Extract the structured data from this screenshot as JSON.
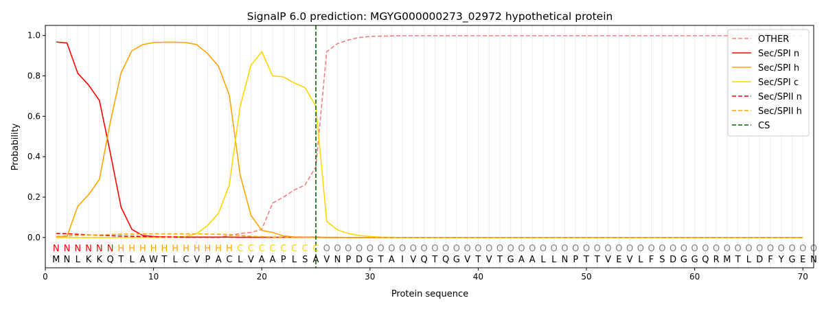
{
  "chart_data": {
    "type": "line",
    "title": "SignalP 6.0 prediction: MGYG000000273_02972 hypothetical protein",
    "xlabel": "Protein sequence",
    "ylabel": "Probability",
    "xlim": [
      0,
      71
    ],
    "ylim": [
      -0.15,
      1.05
    ],
    "xticks": [
      0,
      10,
      20,
      30,
      40,
      50,
      60,
      70
    ],
    "yticks": [
      0.0,
      0.2,
      0.4,
      0.6,
      0.8,
      1.0
    ],
    "x_tick_labels": [
      "0",
      "10",
      "20",
      "30",
      "40",
      "50",
      "60",
      "70"
    ],
    "y_tick_labels": [
      "0.0",
      "0.2",
      "0.4",
      "0.6",
      "0.8",
      "1.0"
    ],
    "grid": "vertical lines at each residue",
    "legend_position": "top-right",
    "sequence": "MNLKKQTLAWTLCVPACLVAAPLSAVNPDGTAIVQTQGVTVTGAALLNPTTVEVLFSDGGQRMTLDFYGEN",
    "labels": "NNNNNNHHHHHHHHHHHCCCCCCCCOOOOOOOOOOOOOOOOOOOOOOOOOOOOOOOOOOOOOOOOOOOOOO",
    "label_colors": {
      "N": "#ff0000",
      "H": "#ffa500",
      "C": "#ffd700",
      "O": "#808080"
    },
    "cleavage_site": 25,
    "series": [
      {
        "name": "OTHER",
        "color": "#f08080",
        "style": "dashed",
        "values": [
          0.0,
          0.0,
          0.0,
          0.0,
          0.0,
          0.0,
          0.0,
          0.0,
          0.0,
          0.0,
          0.0,
          0.0,
          0.0,
          0.0,
          0.0,
          0.0,
          0.01,
          0.02,
          0.025,
          0.04,
          0.17,
          0.2,
          0.235,
          0.26,
          0.35,
          0.92,
          0.96,
          0.978,
          0.99,
          0.995,
          0.997,
          0.998,
          0.999,
          0.999,
          0.999,
          0.999,
          0.999,
          0.999,
          0.999,
          0.999,
          0.999,
          0.999,
          0.999,
          0.999,
          0.999,
          0.999,
          0.999,
          0.999,
          0.999,
          0.999,
          0.999,
          0.999,
          0.999,
          0.999,
          0.999,
          0.999,
          0.999,
          0.999,
          0.999,
          0.999,
          0.999,
          0.999,
          0.999,
          0.999,
          0.999,
          0.999,
          0.999,
          0.999,
          0.999,
          0.999
        ]
      },
      {
        "name": "Sec/SPI n",
        "color": "#ff0000",
        "style": "solid",
        "values": [
          0.968,
          0.963,
          0.813,
          0.755,
          0.678,
          0.42,
          0.15,
          0.04,
          0.01,
          0.005,
          0.003,
          0.002,
          0.002,
          0.002,
          0.002,
          0.002,
          0.002,
          0.001,
          0.001,
          0.001,
          0.001,
          0.001,
          0.001,
          0.001,
          0.001,
          0.0,
          0.0,
          0.0,
          0.0,
          0.0,
          0.0,
          0.0,
          0.0,
          0.0,
          0.0,
          0.0,
          0.0,
          0.0,
          0.0,
          0.0,
          0.0,
          0.0,
          0.0,
          0.0,
          0.0,
          0.0,
          0.0,
          0.0,
          0.0,
          0.0,
          0.0,
          0.0,
          0.0,
          0.0,
          0.0,
          0.0,
          0.0,
          0.0,
          0.0,
          0.0,
          0.0,
          0.0,
          0.0,
          0.0,
          0.0,
          0.0,
          0.0,
          0.0,
          0.0,
          0.0
        ]
      },
      {
        "name": "Sec/SPI h",
        "color": "#ffa500",
        "style": "solid",
        "values": [
          0.005,
          0.005,
          0.155,
          0.212,
          0.288,
          0.57,
          0.815,
          0.925,
          0.955,
          0.965,
          0.967,
          0.967,
          0.965,
          0.955,
          0.91,
          0.848,
          0.705,
          0.31,
          0.11,
          0.035,
          0.025,
          0.008,
          0.003,
          0.002,
          0.002,
          0.001,
          0.001,
          0.0,
          0.0,
          0.0,
          0.0,
          0.0,
          0.0,
          0.0,
          0.0,
          0.0,
          0.0,
          0.0,
          0.0,
          0.0,
          0.0,
          0.0,
          0.0,
          0.0,
          0.0,
          0.0,
          0.0,
          0.0,
          0.0,
          0.0,
          0.0,
          0.0,
          0.0,
          0.0,
          0.0,
          0.0,
          0.0,
          0.0,
          0.0,
          0.0,
          0.0,
          0.0,
          0.0,
          0.0,
          0.0,
          0.0,
          0.0,
          0.0,
          0.0,
          0.0
        ]
      },
      {
        "name": "Sec/SPI c",
        "color": "#ffd700",
        "style": "solid",
        "values": [
          0.0,
          0.0,
          0.0,
          0.0,
          0.0,
          0.0,
          0.0,
          0.0,
          0.0,
          0.001,
          0.002,
          0.003,
          0.005,
          0.02,
          0.06,
          0.12,
          0.26,
          0.65,
          0.852,
          0.92,
          0.8,
          0.795,
          0.765,
          0.742,
          0.65,
          0.08,
          0.038,
          0.02,
          0.01,
          0.005,
          0.002,
          0.001,
          0.0,
          0.0,
          0.0,
          0.0,
          0.0,
          0.0,
          0.0,
          0.0,
          0.0,
          0.0,
          0.0,
          0.0,
          0.0,
          0.0,
          0.0,
          0.0,
          0.0,
          0.0,
          0.0,
          0.0,
          0.0,
          0.0,
          0.0,
          0.0,
          0.0,
          0.0,
          0.0,
          0.0,
          0.0,
          0.0,
          0.0,
          0.0,
          0.0,
          0.0,
          0.0,
          0.0,
          0.0,
          0.0
        ]
      },
      {
        "name": "Sec/SPII n",
        "color": "#ff0000",
        "style": "dashed",
        "values": [
          0.02,
          0.019,
          0.016,
          0.013,
          0.011,
          0.009,
          0.007,
          0.006,
          0.005,
          0.004,
          0.003,
          0.003,
          0.002,
          0.002,
          0.002,
          0.002,
          0.002,
          0.001,
          0.001,
          0.001,
          0.001,
          0.001,
          0.001,
          0.001,
          0.001,
          0.0,
          0.0,
          0.0,
          0.0,
          0.0,
          0.0,
          0.0,
          0.0,
          0.0,
          0.0,
          0.0,
          0.0,
          0.0,
          0.0,
          0.0,
          0.0,
          0.0,
          0.0,
          0.0,
          0.0,
          0.0,
          0.0,
          0.0,
          0.0,
          0.0,
          0.0,
          0.0,
          0.0,
          0.0,
          0.0,
          0.0,
          0.0,
          0.0,
          0.0,
          0.0,
          0.0,
          0.0,
          0.0,
          0.0,
          0.0,
          0.0,
          0.0,
          0.0,
          0.0,
          0.0
        ]
      },
      {
        "name": "Sec/SPII h",
        "color": "#ffa500",
        "style": "dashed",
        "values": [
          0.005,
          0.008,
          0.01,
          0.012,
          0.013,
          0.015,
          0.016,
          0.017,
          0.018,
          0.018,
          0.018,
          0.018,
          0.018,
          0.018,
          0.017,
          0.016,
          0.015,
          0.01,
          0.006,
          0.004,
          0.002,
          0.001,
          0.001,
          0.001,
          0.0,
          0.0,
          0.0,
          0.0,
          0.0,
          0.0,
          0.0,
          0.0,
          0.0,
          0.0,
          0.0,
          0.0,
          0.0,
          0.0,
          0.0,
          0.0,
          0.0,
          0.0,
          0.0,
          0.0,
          0.0,
          0.0,
          0.0,
          0.0,
          0.0,
          0.0,
          0.0,
          0.0,
          0.0,
          0.0,
          0.0,
          0.0,
          0.0,
          0.0,
          0.0,
          0.0,
          0.0,
          0.0,
          0.0,
          0.0,
          0.0,
          0.0,
          0.0,
          0.0,
          0.0,
          0.0
        ]
      },
      {
        "name": "CS",
        "color": "#006400",
        "style": "dashed",
        "vertical_at": 25
      }
    ]
  }
}
